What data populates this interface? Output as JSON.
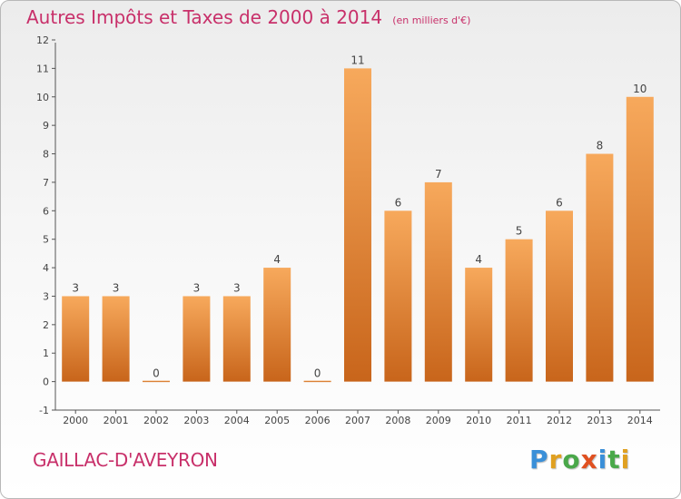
{
  "title": "Autres Impôts et Taxes de 2000 à 2014",
  "unit_note": "(en milliers d'€)",
  "commune": "GAILLAC-D'AVEYRON",
  "logo": {
    "letters": [
      "P",
      "r",
      "o",
      "x",
      "i",
      "t",
      "i"
    ],
    "colors": [
      "#3a8fd8",
      "#e0a020",
      "#4aa84a",
      "#e05020",
      "#3a8fd8",
      "#4aa84a",
      "#e0a020"
    ]
  },
  "colors": {
    "accent": "#c8306a",
    "bar_light": "#f7a95c",
    "bar_dark": "#c8651b",
    "axis": "#555555"
  },
  "chart_data": {
    "type": "bar",
    "categories": [
      "2000",
      "2001",
      "2002",
      "2003",
      "2004",
      "2005",
      "2006",
      "2007",
      "2008",
      "2009",
      "2010",
      "2011",
      "2012",
      "2013",
      "2014"
    ],
    "values": [
      3,
      3,
      0,
      3,
      3,
      4,
      0,
      11,
      6,
      7,
      4,
      5,
      6,
      8,
      10
    ],
    "data_labels": [
      "3",
      "3",
      "0",
      "3",
      "3",
      "4",
      "0",
      "11",
      "6",
      "7",
      "4",
      "5",
      "6",
      "8",
      "10"
    ],
    "yticks": [
      "-1",
      "0",
      "1",
      "2",
      "3",
      "4",
      "5",
      "6",
      "7",
      "8",
      "9",
      "10",
      "11",
      "12"
    ],
    "ylim": [
      -1,
      12
    ],
    "grid": false,
    "title": "Autres Impôts et Taxes de 2000 à 2014",
    "xlabel": "",
    "ylabel": ""
  }
}
